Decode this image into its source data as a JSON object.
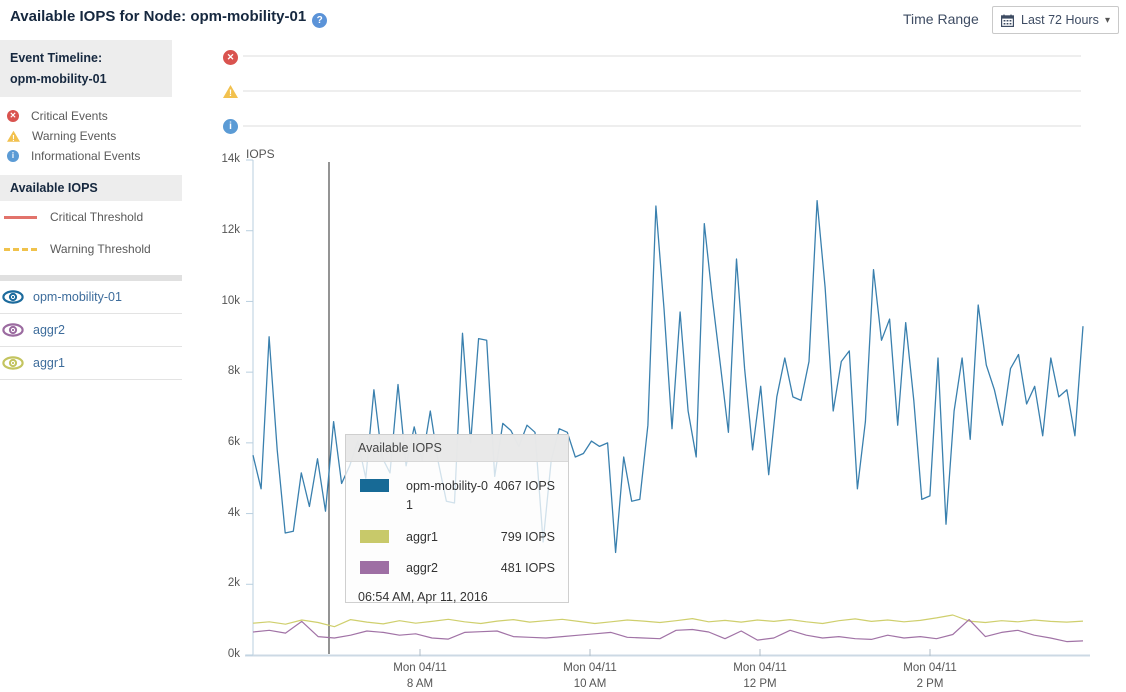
{
  "header": {
    "title": "Available IOPS for Node: opm-mobility-01",
    "help_icon": "?",
    "time_range_label": "Time Range",
    "time_range_value": "Last 72 Hours"
  },
  "sidebar": {
    "event_timeline_title_line1": "Event Timeline:",
    "event_timeline_title_line2": "opm-mobility-01",
    "event_legend": [
      {
        "label": "Critical Events",
        "icon": "critical-circle-x-icon",
        "color": "#d9534f",
        "glyph": "✕"
      },
      {
        "label": "Warning Events",
        "icon": "warning-triangle-icon",
        "color": "#f2c14e",
        "glyph": "!"
      },
      {
        "label": "Informational Events",
        "icon": "info-circle-icon",
        "color": "#5b9bd5",
        "glyph": "i"
      }
    ],
    "section_title": "Available IOPS",
    "thresholds": [
      {
        "label": "Critical Threshold",
        "style": "solid",
        "color": "#e2736b"
      },
      {
        "label": "Warning Threshold",
        "style": "dashed",
        "color": "#f0c24b"
      }
    ],
    "series_toggles": [
      {
        "label": "opm-mobility-01",
        "color": "#1c6b9d"
      },
      {
        "label": "aggr2",
        "color": "#9b6ba0"
      },
      {
        "label": "aggr1",
        "color": "#c3c45f"
      }
    ]
  },
  "tooltip": {
    "title": "Available IOPS",
    "rows": [
      {
        "name": "opm-mobility-01",
        "value": "4067 IOPS",
        "color": "#176a96"
      },
      {
        "name": "aggr1",
        "value": "799 IOPS",
        "color": "#c8c96a"
      },
      {
        "name": "aggr2",
        "value": "481 IOPS",
        "color": "#9e6fa4"
      }
    ],
    "timestamp": "06:54 AM, Apr 11, 2016"
  },
  "chart_data": {
    "type": "line",
    "title": "Available IOPS",
    "ylabel": "IOPS",
    "unit": "IOPS",
    "ylim": [
      0,
      14000
    ],
    "ytick_labels_top_to_bottom": [
      "14k",
      "12k",
      "10k",
      "8k",
      "6k",
      "4k",
      "2k",
      "0k"
    ],
    "xticks": [
      {
        "line1": "Mon 04/11",
        "line2": "8 AM"
      },
      {
        "line1": "Mon 04/11",
        "line2": "10 AM"
      },
      {
        "line1": "Mon 04/11",
        "line2": "12 PM"
      },
      {
        "line1": "Mon 04/11",
        "line2": "2 PM"
      }
    ],
    "grid": false,
    "legend_position": "left-sidebar",
    "crosshair": {
      "time": "06:54 AM, Apr 11, 2016",
      "values": {
        "opm-mobility-01": 4067,
        "aggr1": 799,
        "aggr2": 481
      }
    },
    "event_lanes": [
      {
        "name": "critical",
        "events": []
      },
      {
        "name": "warning",
        "events": []
      },
      {
        "name": "informational",
        "events": []
      }
    ],
    "series": [
      {
        "name": "opm-mobility-01",
        "color": "#3a80ae",
        "width": 1.3,
        "values": [
          5650,
          4700,
          9000,
          5800,
          3450,
          3500,
          5150,
          4200,
          5550,
          4067,
          6600,
          4850,
          5350,
          6050,
          5000,
          7500,
          5600,
          5150,
          7650,
          5350,
          6450,
          5500,
          6900,
          5450,
          4350,
          4300,
          9100,
          6000,
          8950,
          8900,
          5050,
          6550,
          6350,
          5900,
          6500,
          6300,
          3200,
          5500,
          6400,
          6300,
          5600,
          5700,
          6050,
          5900,
          6000,
          2900,
          5600,
          4350,
          4400,
          6500,
          12700,
          9800,
          6400,
          9700,
          6900,
          5600,
          12200,
          10100,
          8200,
          6300,
          11200,
          8100,
          5800,
          7600,
          5100,
          7300,
          8400,
          7300,
          7200,
          8300,
          12850,
          10400,
          6900,
          8300,
          8600,
          4700,
          6600,
          10900,
          8900,
          9500,
          6500,
          9400,
          7200,
          4400,
          4500,
          8400,
          3700,
          6900,
          8400,
          6100,
          9900,
          8200,
          7500,
          6500,
          8100,
          8500,
          7100,
          7600,
          6200,
          8400,
          7300,
          7500,
          6200,
          9300
        ]
      },
      {
        "name": "aggr1",
        "color": "#cfcf6d",
        "width": 1.2,
        "values": [
          900,
          940,
          870,
          990,
          920,
          799,
          1000,
          930,
          880,
          970,
          900,
          950,
          1010,
          940,
          890,
          960,
          1000,
          930,
          970,
          1010,
          950,
          890,
          940,
          990,
          960,
          920,
          970,
          1030,
          940,
          980,
          930,
          990,
          950,
          1000,
          940,
          890,
          970,
          1020,
          950,
          990,
          940,
          980,
          1050,
          1130,
          960,
          920,
          970,
          940,
          990,
          950,
          930,
          960
        ]
      },
      {
        "name": "aggr2",
        "color": "#a173a6",
        "width": 1.2,
        "values": [
          650,
          700,
          620,
          950,
          520,
          481,
          560,
          680,
          640,
          560,
          600,
          480,
          450,
          640,
          660,
          680,
          520,
          500,
          480,
          520,
          560,
          600,
          640,
          500,
          480,
          460,
          700,
          720,
          650,
          460,
          680,
          420,
          480,
          700,
          560,
          480,
          520,
          460,
          440,
          560,
          480,
          520,
          460,
          580,
          1000,
          520,
          640,
          700,
          560,
          480,
          380,
          400
        ]
      }
    ]
  }
}
